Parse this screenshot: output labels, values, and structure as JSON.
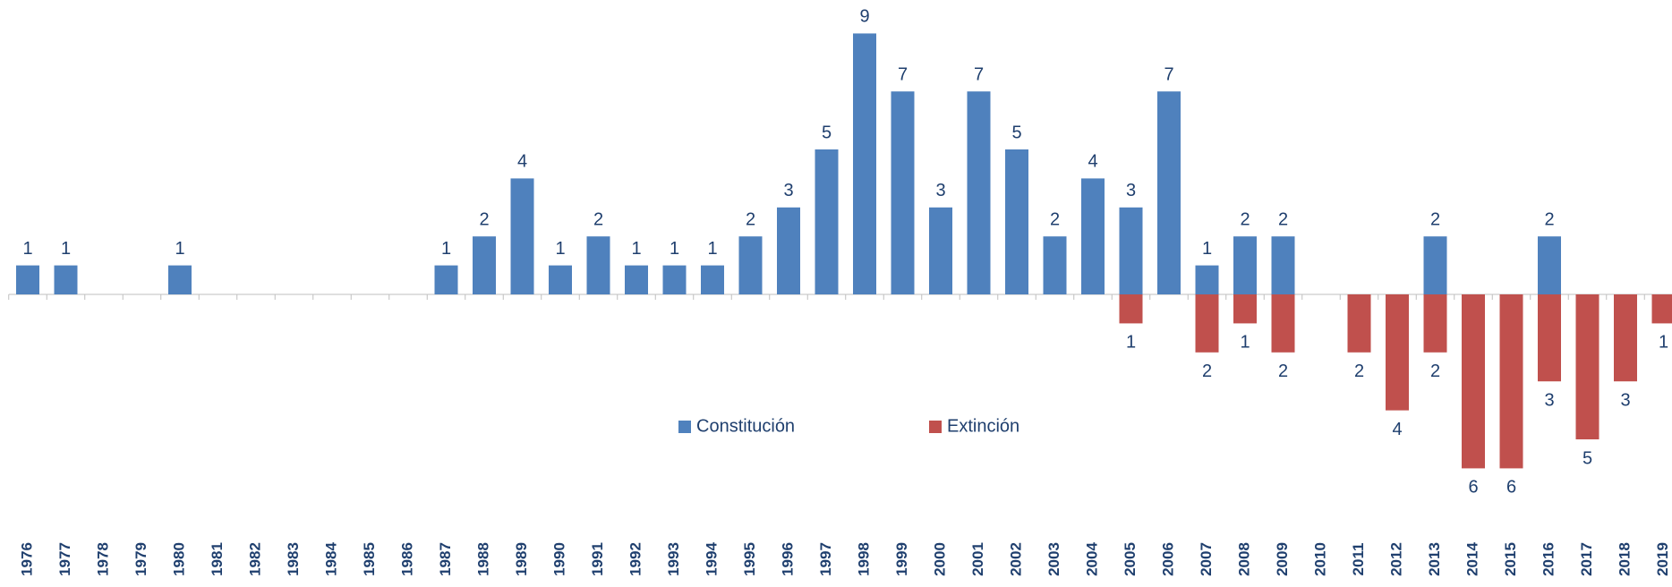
{
  "chart_data": {
    "type": "bar",
    "stacked": false,
    "categories": [
      "1976",
      "1977",
      "1978",
      "1979",
      "1980",
      "1981",
      "1982",
      "1983",
      "1984",
      "1985",
      "1986",
      "1987",
      "1988",
      "1989",
      "1990",
      "1991",
      "1992",
      "1993",
      "1994",
      "1995",
      "1996",
      "1997",
      "1998",
      "1999",
      "2000",
      "2001",
      "2002",
      "2003",
      "2004",
      "2005",
      "2006",
      "2007",
      "2008",
      "2009",
      "2010",
      "2011",
      "2012",
      "2013",
      "2014",
      "2015",
      "2016",
      "2017",
      "2018",
      "2019"
    ],
    "series": [
      {
        "name": "Constitución",
        "color": "#4f81bd",
        "values": [
          1,
          1,
          null,
          null,
          1,
          null,
          null,
          null,
          null,
          null,
          null,
          1,
          2,
          4,
          1,
          2,
          1,
          1,
          1,
          2,
          3,
          5,
          9,
          7,
          3,
          7,
          5,
          2,
          4,
          3,
          7,
          1,
          2,
          2,
          null,
          null,
          null,
          2,
          null,
          null,
          2,
          null,
          null,
          null
        ]
      },
      {
        "name": "Extinción",
        "color": "#c0504d",
        "values": [
          null,
          null,
          null,
          null,
          null,
          null,
          null,
          null,
          null,
          null,
          null,
          null,
          null,
          null,
          null,
          null,
          null,
          null,
          null,
          null,
          null,
          null,
          null,
          null,
          null,
          null,
          null,
          null,
          null,
          -1,
          null,
          -2,
          -1,
          -2,
          null,
          -2,
          -4,
          -2,
          -6,
          -6,
          -3,
          -5,
          -3,
          -1
        ],
        "value_labels": [
          null,
          null,
          null,
          null,
          null,
          null,
          null,
          null,
          null,
          null,
          null,
          null,
          null,
          null,
          null,
          null,
          null,
          null,
          null,
          null,
          null,
          null,
          null,
          null,
          null,
          null,
          null,
          null,
          null,
          "1",
          null,
          "2",
          "1",
          "2",
          null,
          "2",
          "4",
          "2",
          "6",
          "6",
          "3",
          "5",
          "3",
          "1"
        ]
      }
    ],
    "ylim": [
      -7.5,
      10
    ],
    "grid": false,
    "legend": "center"
  }
}
